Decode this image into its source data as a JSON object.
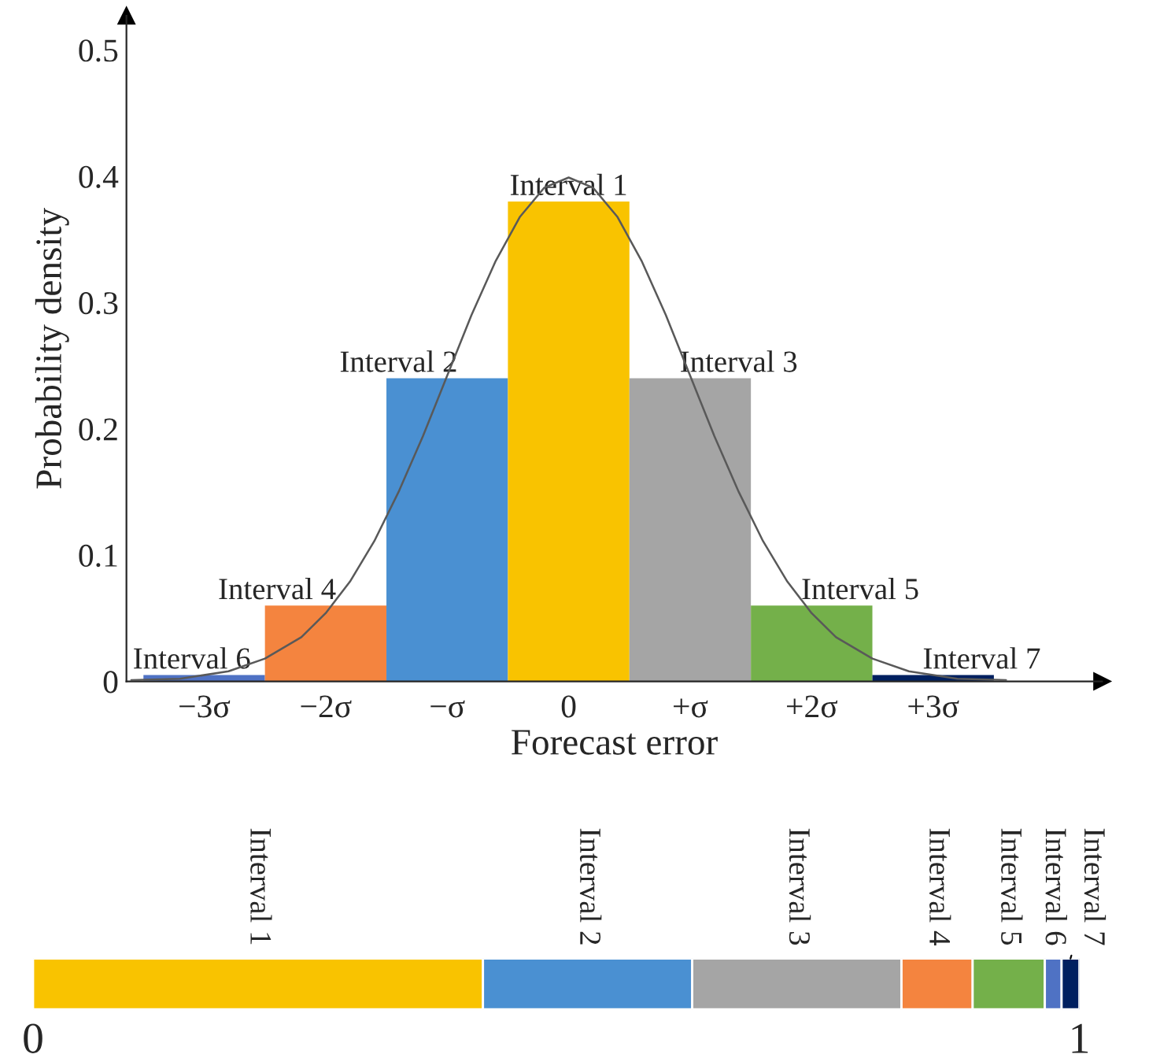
{
  "chart_data": [
    {
      "type": "bar",
      "xlabel": "Forecast error",
      "ylabel": "Probability density",
      "xlim": [
        -3.64,
        4.39
      ],
      "ylim": [
        0,
        0.527
      ],
      "xticks": [
        {
          "value": -3,
          "label": "−3σ"
        },
        {
          "value": -2,
          "label": "−2σ"
        },
        {
          "value": -1,
          "label": "−σ"
        },
        {
          "value": 0,
          "label": "0"
        },
        {
          "value": 1,
          "label": "+σ"
        },
        {
          "value": 2,
          "label": "+2σ"
        },
        {
          "value": 3,
          "label": "+3σ"
        }
      ],
      "yticks": [
        0,
        0.1,
        0.2,
        0.3,
        0.4,
        0.5
      ],
      "grid": false,
      "series": [
        {
          "type": "bar",
          "x": [
            -3,
            -2,
            -1,
            0,
            1,
            2,
            3
          ],
          "values": [
            0.005,
            0.06,
            0.24,
            0.38,
            0.24,
            0.06,
            0.005
          ],
          "colors": [
            "#4f72c4",
            "#f4843f",
            "#4a90d2",
            "#f9c300",
            "#a5a5a5",
            "#74b04a",
            "#002060"
          ]
        },
        {
          "type": "line",
          "color": "#595959",
          "x": [
            -3.6,
            -3.2,
            -2.8,
            -2.5,
            -2.2,
            -2,
            -1.8,
            -1.6,
            -1.4,
            -1.2,
            -1,
            -0.8,
            -0.6,
            -0.4,
            -0.2,
            0,
            0.2,
            0.4,
            0.6,
            0.8,
            1,
            1.2,
            1.4,
            1.6,
            1.8,
            2,
            2.2,
            2.5,
            2.8,
            3.2,
            3.6
          ],
          "values": [
            0.001,
            0.002,
            0.008,
            0.018,
            0.035,
            0.054,
            0.079,
            0.111,
            0.15,
            0.194,
            0.242,
            0.29,
            0.333,
            0.368,
            0.391,
            0.399,
            0.391,
            0.368,
            0.333,
            0.29,
            0.242,
            0.194,
            0.15,
            0.111,
            0.079,
            0.054,
            0.035,
            0.018,
            0.008,
            0.002,
            0.001
          ]
        }
      ],
      "annotations": [
        {
          "text": "Interval 6",
          "x": -3,
          "y": 0.005
        },
        {
          "text": "Interval 4",
          "x": -2,
          "y": 0.06
        },
        {
          "text": "Interval 2",
          "x": -1,
          "y": 0.24
        },
        {
          "text": "Interval 1",
          "x": 0,
          "y": 0.38
        },
        {
          "text": "Interval 3",
          "x": 1,
          "y": 0.24
        },
        {
          "text": "Interval 5",
          "x": 2,
          "y": 0.06
        },
        {
          "text": "Interval 7",
          "x": 3,
          "y": 0.005
        }
      ]
    },
    {
      "type": "bar",
      "orientation": "horizontal",
      "stacked": true,
      "categories": [
        null
      ],
      "xlim": [
        0,
        1
      ],
      "xticks": [
        0,
        1
      ],
      "tick_labels": "x",
      "series": [
        {
          "name": "Interval 1",
          "color": "#f9c300",
          "values": [
            0.43
          ]
        },
        {
          "name": "Interval 2",
          "color": "#4a90d2",
          "values": [
            0.2
          ]
        },
        {
          "name": "Interval 3",
          "color": "#a5a5a5",
          "values": [
            0.2
          ]
        },
        {
          "name": "Interval 4",
          "color": "#f4843f",
          "values": [
            0.068
          ]
        },
        {
          "name": "Interval 5",
          "color": "#74b04a",
          "values": [
            0.069
          ]
        },
        {
          "name": "Interval 6",
          "color": "#4f72c4",
          "values": [
            0.016
          ]
        },
        {
          "name": "Interval 7",
          "color": "#002060",
          "values": [
            0.017
          ]
        }
      ]
    }
  ]
}
